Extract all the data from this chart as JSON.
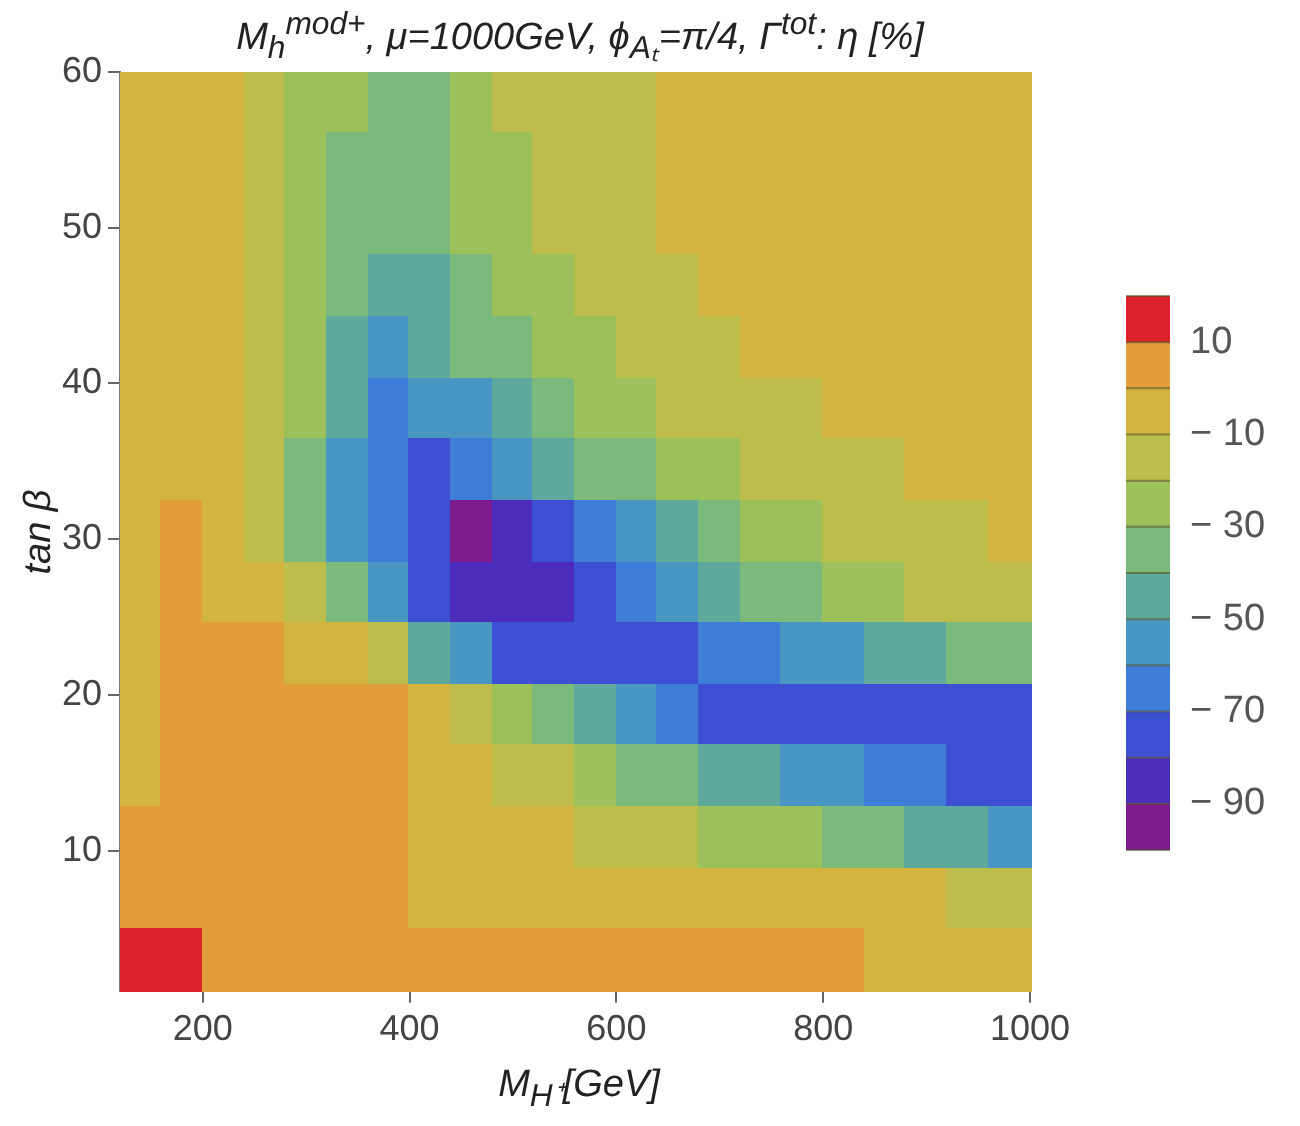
{
  "chart_data": {
    "type": "heatmap",
    "title": "M$_{h}$$^{mod+}$, μ=1000GeV, ϕ$_{Aₜ}$=π/4, Γ$^{tot}$: η [%]",
    "xlabel": "M$_{H⁺}$[GeV]",
    "ylabel": "tan β",
    "x": [
      140,
      180,
      220,
      260,
      300,
      340,
      380,
      420,
      460,
      500,
      540,
      580,
      620,
      660,
      700,
      740,
      780,
      820,
      860,
      900,
      940,
      980
    ],
    "y": [
      58.03,
      54.1,
      50.17,
      46.23,
      42.3,
      38.37,
      34.43,
      30.5,
      26.57,
      22.63,
      18.7,
      14.77,
      10.83,
      6.9,
      2.97
    ],
    "xlim": [
      120,
      1000
    ],
    "xticks": [
      200,
      400,
      600,
      800,
      1000
    ],
    "ylim": [
      1,
      60
    ],
    "yticks": [
      10,
      20,
      30,
      40,
      50,
      60
    ],
    "cells": [
      [
        -5,
        -5,
        -5,
        -15,
        -25,
        -25,
        -35,
        -35,
        -25,
        -15,
        -15,
        -15,
        -15,
        -5,
        -5,
        -5,
        -5,
        -5,
        -5,
        -5,
        -5,
        -5
      ],
      [
        -5,
        -5,
        -5,
        -15,
        -25,
        -35,
        -35,
        -35,
        -25,
        -25,
        -15,
        -15,
        -15,
        -5,
        -5,
        -5,
        -5,
        -5,
        -5,
        -5,
        -5,
        -5
      ],
      [
        -5,
        -5,
        -5,
        -15,
        -25,
        -35,
        -35,
        -35,
        -25,
        -25,
        -15,
        -15,
        -15,
        -5,
        -5,
        -5,
        -5,
        -5,
        -5,
        -5,
        -5,
        -5
      ],
      [
        -5,
        -5,
        -5,
        -15,
        -25,
        -35,
        -45,
        -45,
        -35,
        -25,
        -25,
        -15,
        -15,
        -15,
        -5,
        -5,
        -5,
        -5,
        -5,
        -5,
        -5,
        -5
      ],
      [
        -5,
        -5,
        -5,
        -15,
        -25,
        -45,
        -55,
        -45,
        -35,
        -35,
        -25,
        -25,
        -15,
        -15,
        -15,
        -5,
        -5,
        -5,
        -5,
        -5,
        -5,
        -5
      ],
      [
        -5,
        -5,
        -5,
        -15,
        -25,
        -45,
        -65,
        -55,
        -55,
        -45,
        -35,
        -25,
        -25,
        -15,
        -15,
        -15,
        -15,
        -5,
        -5,
        -5,
        -5,
        -5
      ],
      [
        -5,
        -5,
        -5,
        -15,
        -35,
        -55,
        -65,
        -75,
        -65,
        -55,
        -45,
        -35,
        -35,
        -25,
        -25,
        -15,
        -15,
        -15,
        -15,
        -5,
        -5,
        -5
      ],
      [
        -5,
        5,
        -5,
        -15,
        -35,
        -55,
        -65,
        -75,
        -95,
        -85,
        -75,
        -65,
        -55,
        -45,
        -35,
        -25,
        -25,
        -15,
        -15,
        -15,
        -15,
        -5
      ],
      [
        -5,
        5,
        -5,
        -5,
        -15,
        -35,
        -55,
        -75,
        -85,
        -85,
        -85,
        -75,
        -65,
        -55,
        -45,
        -35,
        -35,
        -25,
        -25,
        -15,
        -15,
        -15
      ],
      [
        -5,
        5,
        5,
        5,
        -5,
        -5,
        -15,
        -45,
        -55,
        -75,
        -75,
        -75,
        -75,
        -75,
        -65,
        -65,
        -55,
        -55,
        -45,
        -45,
        -35,
        -35
      ],
      [
        -5,
        5,
        5,
        5,
        5,
        5,
        5,
        -5,
        -15,
        -25,
        -35,
        -45,
        -55,
        -65,
        -75,
        -75,
        -75,
        -75,
        -75,
        -75,
        -75,
        -75
      ],
      [
        -5,
        5,
        5,
        5,
        5,
        5,
        5,
        -5,
        -5,
        -15,
        -15,
        -25,
        -35,
        -35,
        -45,
        -45,
        -55,
        -55,
        -65,
        -65,
        -75,
        -75
      ],
      [
        5,
        5,
        5,
        5,
        5,
        5,
        5,
        -5,
        -5,
        -5,
        -5,
        -15,
        -15,
        -15,
        -25,
        -25,
        -25,
        -35,
        -35,
        -45,
        -45,
        -55
      ],
      [
        5,
        5,
        5,
        5,
        5,
        5,
        5,
        -5,
        -5,
        -5,
        -5,
        -5,
        -5,
        -5,
        -5,
        -5,
        -5,
        -5,
        -5,
        -5,
        -15,
        -15
      ],
      [
        15,
        15,
        5,
        5,
        5,
        5,
        5,
        5,
        5,
        5,
        5,
        5,
        5,
        5,
        5,
        5,
        5,
        5,
        -5,
        -5,
        -5,
        -5
      ]
    ],
    "clim": [
      -100,
      20
    ],
    "cticks": [
      {
        "value": -100,
        "label": null
      },
      -90,
      {
        "value": -80,
        "label": null
      },
      -70,
      {
        "value": -60,
        "label": null
      },
      -50,
      {
        "value": -40,
        "label": null
      },
      -30,
      {
        "value": -20,
        "label": null
      },
      -10,
      {
        "value": 0,
        "label": null
      },
      10,
      {
        "value": 20,
        "label": null
      }
    ],
    "colors": [
      "#7c1a8e",
      "#4b2cbb",
      "#3d4fd2",
      "#3f7ed8",
      "#4a96c2",
      "#5ea89c",
      "#7cba7c",
      "#9cc05a",
      "#bcbd4a",
      "#d4b440",
      "#e39e3c",
      "#dc2228"
    ],
    "grid": false
  }
}
